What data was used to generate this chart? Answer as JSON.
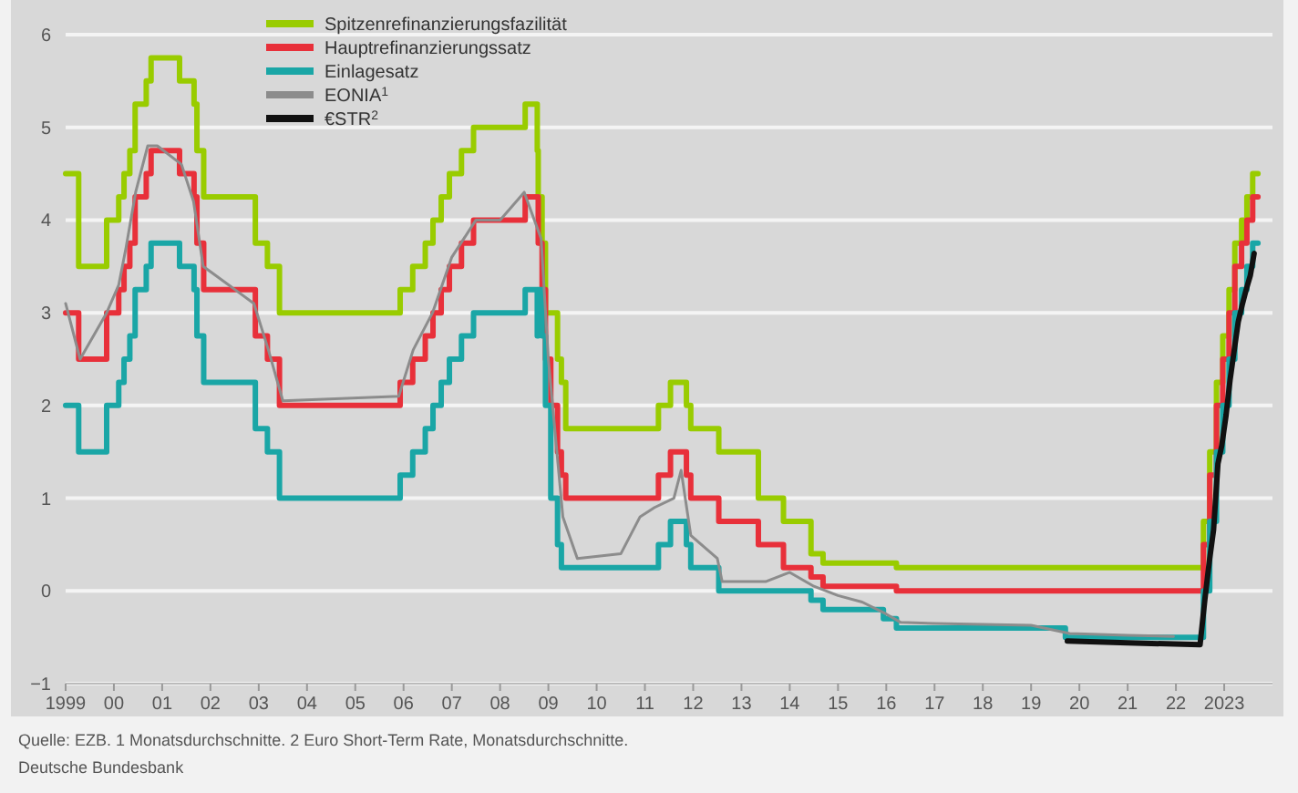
{
  "chart_data": {
    "type": "step",
    "xlim": [
      1999,
      2024
    ],
    "ylim": [
      -1,
      6
    ],
    "xticks": [
      1999,
      {
        "value": 2000,
        "label": "00"
      },
      {
        "value": 2001,
        "label": "01"
      },
      {
        "value": 2002,
        "label": "02"
      },
      {
        "value": 2003,
        "label": "03"
      },
      {
        "value": 2004,
        "label": "04"
      },
      {
        "value": 2005,
        "label": "05"
      },
      {
        "value": 2006,
        "label": "06"
      },
      {
        "value": 2007,
        "label": "07"
      },
      {
        "value": 2008,
        "label": "08"
      },
      {
        "value": 2009,
        "label": "09"
      },
      {
        "value": 2010,
        "label": "10"
      },
      {
        "value": 2011,
        "label": "11"
      },
      {
        "value": 2012,
        "label": "12"
      },
      {
        "value": 2013,
        "label": "13"
      },
      {
        "value": 2014,
        "label": "14"
      },
      {
        "value": 2015,
        "label": "15"
      },
      {
        "value": 2016,
        "label": "16"
      },
      {
        "value": 2017,
        "label": "17"
      },
      {
        "value": 2018,
        "label": "18"
      },
      {
        "value": 2019,
        "label": "19"
      },
      {
        "value": 2020,
        "label": "20"
      },
      {
        "value": 2021,
        "label": "21"
      },
      {
        "value": 2022,
        "label": "22"
      },
      2023
    ],
    "yticks": [
      6,
      5,
      4,
      3,
      2,
      1,
      0,
      {
        "value": -1,
        "label": "−1"
      }
    ],
    "grid": "y",
    "legend": "top left",
    "series": [
      {
        "name": "Spitzenrefinanzierungsfazilität",
        "color": "#99cc00",
        "x": [
          1999.0,
          1999.27,
          1999.85,
          2000.1,
          2000.21,
          2000.33,
          2000.44,
          2000.67,
          2000.77,
          2001.36,
          2001.66,
          2001.72,
          2001.86,
          2002.93,
          2003.18,
          2003.43,
          2005.93,
          2006.19,
          2006.45,
          2006.61,
          2006.78,
          2006.95,
          2007.2,
          2007.45,
          2008.52,
          2008.77,
          2008.79,
          2008.87,
          2008.94,
          2009.05,
          2009.19,
          2009.27,
          2009.36,
          2011.28,
          2011.53,
          2011.86,
          2011.95,
          2012.53,
          2013.35,
          2013.87,
          2014.44,
          2014.69,
          2016.21,
          2022.57,
          2022.7,
          2022.84,
          2022.97,
          2023.1,
          2023.22,
          2023.36,
          2023.47,
          2023.59,
          2023.7
        ],
        "values": [
          4.5,
          3.5,
          4,
          4.25,
          4.5,
          4.75,
          5.25,
          5.5,
          5.75,
          5.5,
          5.25,
          4.75,
          4.25,
          3.75,
          3.5,
          3,
          3.25,
          3.5,
          3.75,
          4,
          4.25,
          4.5,
          4.75,
          5,
          5.25,
          4.75,
          4.25,
          3.75,
          3,
          3,
          2.5,
          2.25,
          1.75,
          2,
          2.25,
          2,
          1.75,
          1.5,
          1,
          0.75,
          0.4,
          0.3,
          0.25,
          0.75,
          1.5,
          2.25,
          2.75,
          3.25,
          3.75,
          4,
          4.25,
          4.5,
          4.5
        ]
      },
      {
        "name": "Hauptrefinanzierungssatz",
        "color": "#e8303a",
        "x": [
          1999.0,
          1999.27,
          1999.85,
          2000.1,
          2000.21,
          2000.33,
          2000.44,
          2000.67,
          2000.77,
          2001.36,
          2001.66,
          2001.72,
          2001.86,
          2002.93,
          2003.18,
          2003.43,
          2005.93,
          2006.19,
          2006.45,
          2006.61,
          2006.78,
          2006.95,
          2007.2,
          2007.45,
          2008.52,
          2008.79,
          2008.87,
          2008.94,
          2009.05,
          2009.19,
          2009.27,
          2009.36,
          2011.28,
          2011.53,
          2011.86,
          2011.95,
          2012.53,
          2013.35,
          2013.87,
          2014.44,
          2014.69,
          2016.21,
          2022.57,
          2022.7,
          2022.84,
          2022.97,
          2023.1,
          2023.22,
          2023.36,
          2023.47,
          2023.59,
          2023.7
        ],
        "values": [
          3,
          2.5,
          3,
          3.25,
          3.5,
          3.75,
          4.25,
          4.5,
          4.75,
          4.5,
          4.25,
          3.75,
          3.25,
          2.75,
          2.5,
          2,
          2.25,
          2.5,
          2.75,
          3,
          3.25,
          3.5,
          3.75,
          4,
          4.25,
          3.75,
          3.25,
          2.5,
          2,
          1.5,
          1.25,
          1,
          1.25,
          1.5,
          1.25,
          1,
          0.75,
          0.5,
          0.25,
          0.15,
          0.05,
          0,
          0.5,
          1.25,
          2,
          2.5,
          3,
          3.5,
          3.75,
          4,
          4.25,
          4.25
        ]
      },
      {
        "name": "Einlagesatz",
        "color": "#1aa6a6",
        "x": [
          1999.0,
          1999.27,
          1999.85,
          2000.1,
          2000.21,
          2000.33,
          2000.44,
          2000.67,
          2000.77,
          2001.36,
          2001.66,
          2001.72,
          2001.86,
          2002.93,
          2003.18,
          2003.43,
          2005.93,
          2006.19,
          2006.45,
          2006.61,
          2006.78,
          2006.95,
          2007.2,
          2007.45,
          2008.52,
          2008.77,
          2008.79,
          2008.87,
          2008.94,
          2009.05,
          2009.19,
          2009.27,
          2011.28,
          2011.53,
          2011.86,
          2011.95,
          2012.53,
          2014.44,
          2014.69,
          2015.94,
          2016.21,
          2019.71,
          2022.57,
          2022.7,
          2022.84,
          2022.97,
          2023.1,
          2023.22,
          2023.36,
          2023.47,
          2023.59,
          2023.7
        ],
        "values": [
          2,
          1.5,
          2,
          2.25,
          2.5,
          2.75,
          3.25,
          3.5,
          3.75,
          3.5,
          3.25,
          2.75,
          2.25,
          1.75,
          1.5,
          1,
          1.25,
          1.5,
          1.75,
          2,
          2.25,
          2.5,
          2.75,
          3,
          3.25,
          2.75,
          3.25,
          2.75,
          2,
          1,
          0.5,
          0.25,
          0.5,
          0.75,
          0.5,
          0.25,
          0,
          -0.1,
          -0.2,
          -0.3,
          -0.4,
          -0.5,
          0,
          0.75,
          1.5,
          2,
          2.5,
          3,
          3.25,
          3.5,
          3.75,
          3.75
        ]
      },
      {
        "name": "EONIA$^{1}$",
        "color": "#8c8c8c",
        "type": "line",
        "x": [
          1999.0,
          1999.3,
          1999.85,
          2000.1,
          2000.25,
          2000.45,
          2000.7,
          2000.9,
          2001.4,
          2001.65,
          2001.85,
          2002.9,
          2003.2,
          2003.5,
          2005.9,
          2006.2,
          2006.6,
          2007.0,
          2007.5,
          2008.0,
          2008.5,
          2008.85,
          2009.0,
          2009.3,
          2009.6,
          2010.5,
          2010.9,
          2011.2,
          2011.6,
          2011.75,
          2011.95,
          2012.5,
          2012.6,
          2013.5,
          2014.0,
          2014.5,
          2015.0,
          2015.5,
          2016.0,
          2016.3,
          2017.0,
          2019.0,
          2019.8,
          2021.0,
          2021.95
        ],
        "values": [
          3.1,
          2.5,
          3,
          3.3,
          3.7,
          4.3,
          4.8,
          4.8,
          4.6,
          4.2,
          3.5,
          3.1,
          2.6,
          2.05,
          2.1,
          2.6,
          3,
          3.6,
          4,
          4,
          4.3,
          3.8,
          2.5,
          0.8,
          0.35,
          0.4,
          0.8,
          0.9,
          1,
          1.3,
          0.6,
          0.35,
          0.1,
          0.1,
          0.2,
          0.05,
          -0.05,
          -0.12,
          -0.25,
          -0.34,
          -0.35,
          -0.37,
          -0.46,
          -0.48,
          -0.49
        ]
      },
      {
        "name": "€STR$^{2}$",
        "color": "#111111",
        "type": "line",
        "x": [
          2019.75,
          2021.0,
          2022.5,
          2022.6,
          2022.7,
          2022.78,
          2022.87,
          2022.95,
          2023.04,
          2023.12,
          2023.2,
          2023.29,
          2023.37,
          2023.45,
          2023.54,
          2023.62
        ],
        "values": [
          -0.54,
          -0.56,
          -0.58,
          -0.09,
          0.35,
          0.66,
          1.37,
          1.57,
          1.9,
          2.27,
          2.57,
          2.9,
          3.08,
          3.24,
          3.4,
          3.64
        ]
      }
    ],
    "annotations": [
      "Quelle: EZB. 1 Monatsdurchschnitte. 2 Euro Short-Term Rate, Monatsdurchschnitte.",
      "Deutsche Bundesbank"
    ]
  }
}
